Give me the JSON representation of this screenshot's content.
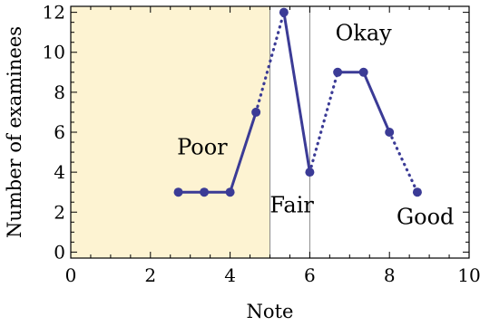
{
  "chart_data": {
    "type": "line",
    "xlabel": "Note",
    "ylabel": "Number of examinees",
    "xlim": [
      0,
      10
    ],
    "ylim": [
      -0.3,
      12.3
    ],
    "xticks": [
      0,
      2,
      4,
      6,
      8,
      10
    ],
    "yticks": [
      0,
      2,
      4,
      6,
      8,
      10,
      12
    ],
    "grid": false,
    "colors": {
      "series": "#3b3b96",
      "shade": "#fdf3d2",
      "divider": "#8a8a8a"
    },
    "shaded_region": {
      "x": [
        0,
        5
      ]
    },
    "dividers": [
      5,
      6
    ],
    "series": [
      {
        "x": [
          2.7,
          3.35,
          4.0,
          4.65,
          5.35,
          6.0,
          6.7,
          7.35,
          8.0,
          8.7
        ],
        "y": [
          3,
          3,
          3,
          7,
          12,
          4,
          9,
          9,
          6,
          3
        ]
      }
    ],
    "segments": [
      {
        "from": 0,
        "to": 1,
        "style": "solid"
      },
      {
        "from": 1,
        "to": 2,
        "style": "solid"
      },
      {
        "from": 2,
        "to": 3,
        "style": "solid"
      },
      {
        "from": 3,
        "to": 4,
        "style": "dotted"
      },
      {
        "from": 4,
        "to": 5,
        "style": "solid"
      },
      {
        "from": 5,
        "to": 6,
        "style": "dotted"
      },
      {
        "from": 6,
        "to": 7,
        "style": "solid"
      },
      {
        "from": 7,
        "to": 8,
        "style": "solid"
      },
      {
        "from": 8,
        "to": 9,
        "style": "dotted"
      }
    ],
    "annotations": [
      {
        "name": "poor",
        "text": "Poor",
        "x": 3.3,
        "y": 4.9
      },
      {
        "name": "fair",
        "text": "Fair",
        "x": 5.55,
        "y": 2.0
      },
      {
        "name": "okay",
        "text": "Okay",
        "x": 7.35,
        "y": 10.6
      },
      {
        "name": "good",
        "text": "Good",
        "x": 8.9,
        "y": 1.4
      }
    ]
  }
}
